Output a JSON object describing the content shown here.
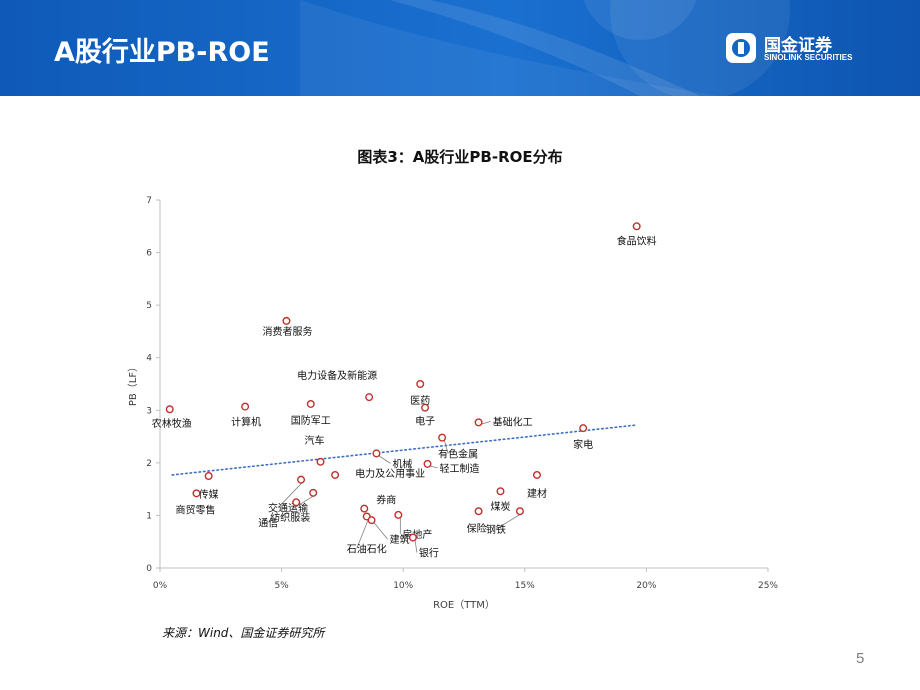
{
  "slide": {
    "title": "A股行业PB-ROE",
    "page_number": "5",
    "logo": {
      "cn": "国金证券",
      "en": "SINOLINK SECURITIES"
    },
    "source": "来源：Wind、国金证券研究所",
    "colors": {
      "banner": "#1265c4",
      "banner_light": "#4d9be8",
      "marker": "#c0302c",
      "trend": "#3b6fc4"
    }
  },
  "chart_data": {
    "type": "scatter",
    "title": "图表3：A股行业PB-ROE分布",
    "xlabel": "ROE（TTM）",
    "ylabel": "PB（LF）",
    "xlim": [
      0,
      0.25
    ],
    "ylim": [
      0,
      7
    ],
    "x_ticks": [
      "0%",
      "5%",
      "10%",
      "15%",
      "20%",
      "25%"
    ],
    "y_ticks": [
      "0",
      "1",
      "2",
      "3",
      "4",
      "5",
      "6",
      "7"
    ],
    "trendline": {
      "style": "dotted",
      "x": [
        0.005,
        0.196
      ],
      "y": [
        1.77,
        2.72
      ]
    },
    "grid": false,
    "points": [
      {
        "name": "食品饮料",
        "x": 0.196,
        "y": 6.5
      },
      {
        "name": "消费者服务",
        "x": 0.052,
        "y": 4.7
      },
      {
        "name": "电力设备及新能源",
        "x": 0.086,
        "y": 3.25
      },
      {
        "name": "医药",
        "x": 0.107,
        "y": 3.5
      },
      {
        "name": "农林牧渔",
        "x": 0.004,
        "y": 3.02
      },
      {
        "name": "计算机",
        "x": 0.035,
        "y": 3.07
      },
      {
        "name": "国防军工",
        "x": 0.062,
        "y": 3.12
      },
      {
        "name": "电子",
        "x": 0.109,
        "y": 3.05
      },
      {
        "name": "基础化工",
        "x": 0.131,
        "y": 2.77
      },
      {
        "name": "家电",
        "x": 0.174,
        "y": 2.66
      },
      {
        "name": "汽车",
        "x": 0.066,
        "y": 2.02
      },
      {
        "name": "有色金属",
        "x": 0.116,
        "y": 2.48
      },
      {
        "name": "机械",
        "x": 0.089,
        "y": 2.18
      },
      {
        "name": "轻工制造",
        "x": 0.11,
        "y": 1.98
      },
      {
        "name": "传媒",
        "x": 0.02,
        "y": 1.75
      },
      {
        "name": "电力及公用事业",
        "x": 0.072,
        "y": 1.77
      },
      {
        "name": "建材",
        "x": 0.155,
        "y": 1.77
      },
      {
        "name": "商贸零售",
        "x": 0.015,
        "y": 1.42
      },
      {
        "name": "交通运输",
        "x": 0.058,
        "y": 1.68
      },
      {
        "name": "通信",
        "x": 0.056,
        "y": 1.25
      },
      {
        "name": "纺织服装",
        "x": 0.063,
        "y": 1.43
      },
      {
        "name": "煤炭",
        "x": 0.14,
        "y": 1.46
      },
      {
        "name": "券商",
        "x": 0.084,
        "y": 1.13
      },
      {
        "name": "房地产",
        "x": 0.098,
        "y": 1.01
      },
      {
        "name": "石油石化",
        "x": 0.085,
        "y": 0.98
      },
      {
        "name": "建筑",
        "x": 0.087,
        "y": 0.91
      },
      {
        "name": "保险",
        "x": 0.131,
        "y": 1.08
      },
      {
        "name": "钢铁",
        "x": 0.148,
        "y": 1.08
      },
      {
        "name": "银行",
        "x": 0.104,
        "y": 0.58
      }
    ]
  }
}
